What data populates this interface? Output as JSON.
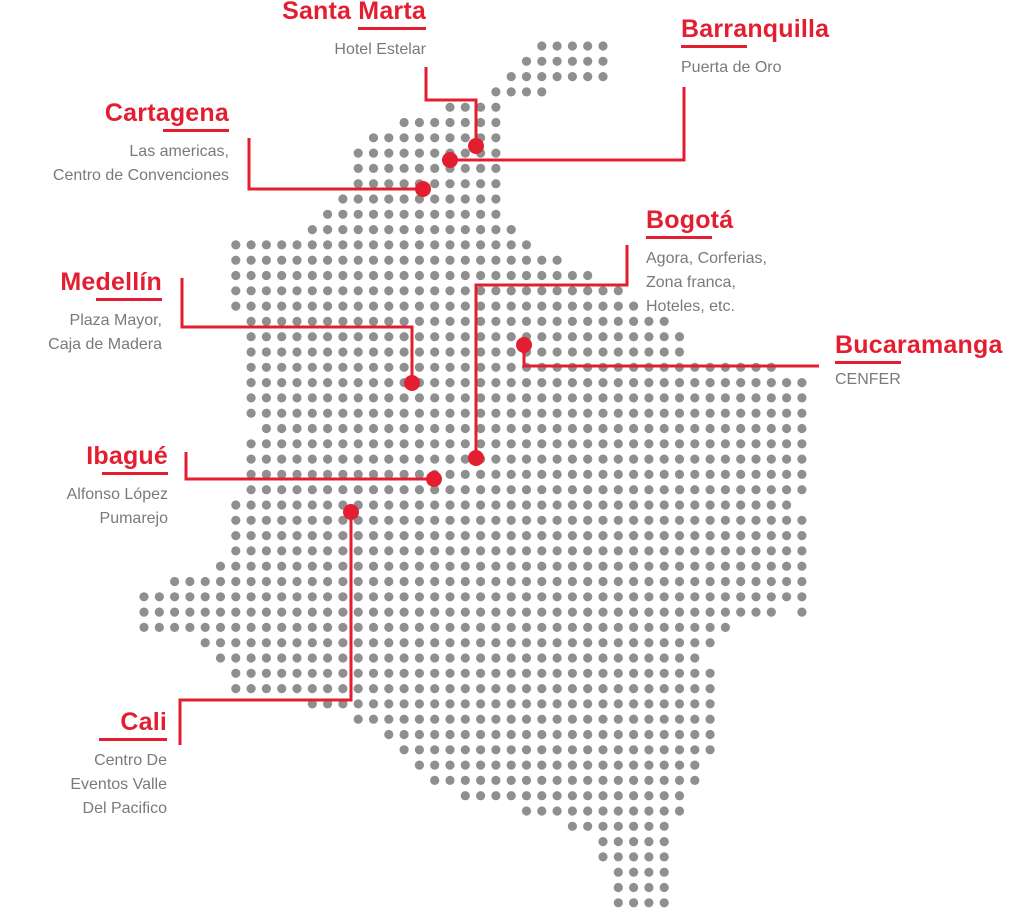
{
  "colors": {
    "accent": "#e41e31",
    "dot": "#8f8f8f",
    "venue_text": "#7a7a7a"
  },
  "map": {
    "icon": "colombia-dot-map"
  },
  "locations": [
    {
      "id": "santa-marta",
      "city": "Santa Marta",
      "venue_lines": [
        "Hotel Estelar"
      ]
    },
    {
      "id": "barranquilla",
      "city": "Barranquilla",
      "venue_lines": [
        "Puerta de Oro"
      ]
    },
    {
      "id": "cartagena",
      "city": "Cartagena",
      "venue_lines": [
        "Las americas,",
        "Centro de Convenciones"
      ]
    },
    {
      "id": "bogota",
      "city": "Bogotá",
      "venue_lines": [
        "Agora, Corferias,",
        "Zona franca,",
        "Hoteles, etc."
      ]
    },
    {
      "id": "medellin",
      "city": "Medellín",
      "venue_lines": [
        "Plaza Mayor,",
        "Caja de Madera"
      ]
    },
    {
      "id": "bucaramanga",
      "city": "Bucaramanga",
      "venue_lines": [
        "CENFER"
      ]
    },
    {
      "id": "ibague",
      "city": "Ibagué",
      "venue_lines": [
        "Alfonso López",
        "Pumarejo"
      ]
    },
    {
      "id": "cali",
      "city": "Cali",
      "venue_lines": [
        "Centro De",
        "Eventos Valle",
        "Del Pacifico"
      ]
    }
  ]
}
